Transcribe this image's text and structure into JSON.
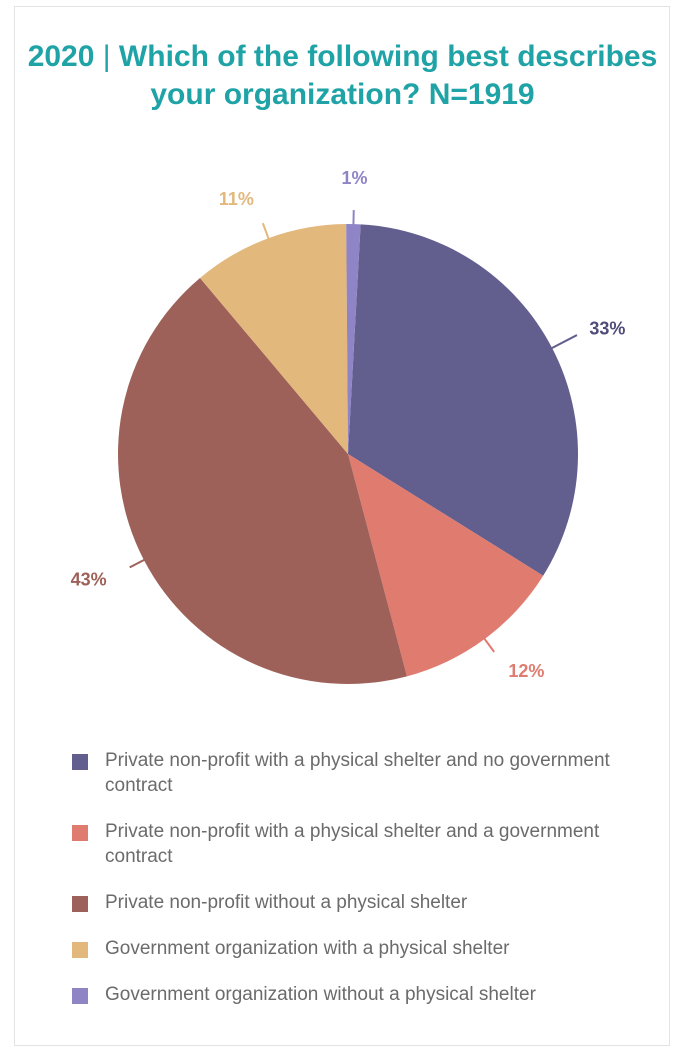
{
  "title": {
    "year": "2020",
    "separator": "|",
    "text": "Which of the following best describes your organization? N=1919"
  },
  "chart_data": {
    "type": "pie",
    "title": "2020 | Which of the following best describes your organization? N=1919",
    "legend_position": "bottom",
    "slices": [
      {
        "name": "Private non-profit with a physical shelter and no government contract",
        "value": 33,
        "label": "33%",
        "color": "#625f8f",
        "label_color": "#4f4c78"
      },
      {
        "name": "Private non-profit with a physical shelter and a government contract",
        "value": 12,
        "label": "12%",
        "color": "#e07b6f",
        "label_color": "#e07b6f"
      },
      {
        "name": "Private non-profit without a physical shelter",
        "value": 43,
        "label": "43%",
        "color": "#9e6159",
        "label_color": "#9e6159"
      },
      {
        "name": "Government organization with a physical shelter",
        "value": 11,
        "label": "11%",
        "color": "#e2b87c",
        "label_color": "#e2b87c"
      },
      {
        "name": "Government organization without a physical shelter",
        "value": 1,
        "label": "1%",
        "color": "#8e84c6",
        "label_color": "#8e84c6"
      }
    ]
  }
}
